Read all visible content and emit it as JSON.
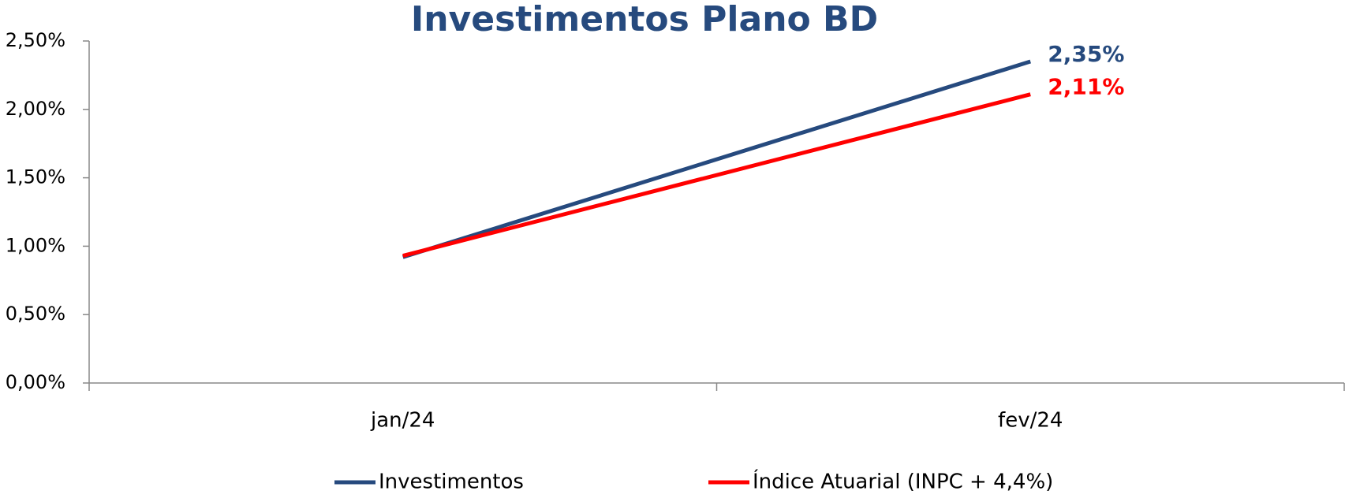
{
  "chart_data": {
    "type": "line",
    "title": "Investimentos Plano BD",
    "categories": [
      "jan/24",
      "fev/24"
    ],
    "series": [
      {
        "name": "Investimentos",
        "color": "#264a7e",
        "values": [
          0.92,
          2.35
        ],
        "value_labels": [
          null,
          "2,35%"
        ]
      },
      {
        "name": "Índice Atuarial (INPC + 4,4%)",
        "color": "#ff0000",
        "values": [
          0.93,
          2.11
        ],
        "value_labels": [
          null,
          "2,11%"
        ]
      }
    ],
    "ylim": [
      0,
      2.5
    ],
    "yticks": [
      {
        "value": 0,
        "label": "0,00%"
      },
      {
        "value": 0.5,
        "label": "0,50%"
      },
      {
        "value": 1,
        "label": "1,00%"
      },
      {
        "value": 1.5,
        "label": "1,50%"
      },
      {
        "value": 2,
        "label": "2,00%"
      },
      {
        "value": 2.5,
        "label": "2,50%"
      }
    ],
    "grid": false,
    "legend": "bottom"
  }
}
